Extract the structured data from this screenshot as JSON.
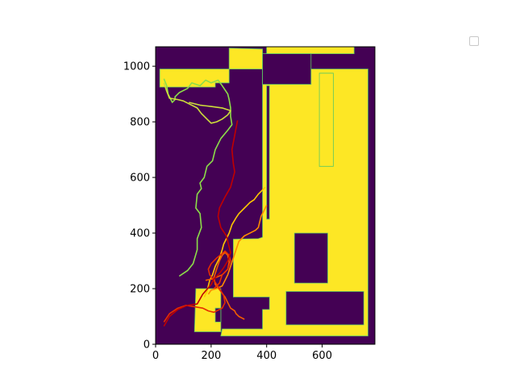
{
  "chart_data": {
    "type": "line",
    "title": "",
    "xlabel": "",
    "ylabel": "",
    "xlim": [
      0,
      790
    ],
    "ylim": [
      0,
      1070
    ],
    "xticks": [
      0,
      200,
      400,
      600
    ],
    "yticks": [
      0,
      200,
      400,
      600,
      800,
      1000
    ],
    "grid": false,
    "legend": {
      "placement": "upper right",
      "entries": []
    },
    "colors": {
      "background_map": "#440154",
      "free_space": "#fde725",
      "edge": "#5ec962"
    },
    "map_regions": {
      "free_space": [
        [
          [
            15,
            925
          ],
          [
            215,
            925
          ],
          [
            215,
            940
          ],
          [
            265,
            940
          ],
          [
            265,
            1065
          ],
          [
            385,
            1062
          ],
          [
            385,
            385
          ],
          [
            370,
            380
          ],
          [
            280,
            378
          ],
          [
            280,
            170
          ],
          [
            410,
            170
          ],
          [
            410,
            125
          ],
          [
            385,
            125
          ],
          [
            385,
            55
          ],
          [
            240,
            55
          ],
          [
            235,
            30
          ],
          [
            765,
            30
          ],
          [
            765,
            990
          ],
          [
            15,
            990
          ]
        ],
        [
          [
            400,
            1045
          ],
          [
            715,
            1045
          ],
          [
            715,
            1070
          ],
          [
            400,
            1070
          ]
        ],
        [
          [
            145,
            200
          ],
          [
            235,
            200
          ],
          [
            235,
            45
          ],
          [
            140,
            45
          ]
        ],
        [
          [
            590,
            640
          ],
          [
            640,
            640
          ],
          [
            640,
            975
          ],
          [
            590,
            975
          ]
        ]
      ],
      "obstacles": [
        [
          [
            385,
            935
          ],
          [
            560,
            935
          ],
          [
            560,
            1045
          ],
          [
            385,
            1045
          ]
        ],
        [
          [
            400,
            450
          ],
          [
            410,
            450
          ],
          [
            410,
            930
          ],
          [
            400,
            930
          ]
        ],
        [
          [
            500,
            220
          ],
          [
            620,
            220
          ],
          [
            620,
            400
          ],
          [
            500,
            400
          ]
        ],
        [
          [
            470,
            70
          ],
          [
            750,
            70
          ],
          [
            750,
            190
          ],
          [
            470,
            190
          ]
        ],
        [
          [
            215,
            80
          ],
          [
            235,
            80
          ],
          [
            235,
            130
          ],
          [
            215,
            130
          ]
        ]
      ]
    },
    "series": [
      {
        "color": "#8cde49",
        "x": [
          85,
          100,
          115,
          135,
          150,
          150,
          165,
          160,
          145,
          150,
          165,
          160,
          175,
          185,
          205,
          215,
          235,
          260,
          275,
          270,
          270,
          265,
          260,
          240,
          225,
          200,
          180,
          160,
          130,
          115,
          85,
          70,
          70,
          60,
          45,
          40,
          30
        ],
        "y": [
          245,
          255,
          265,
          290,
          340,
          380,
          420,
          470,
          490,
          540,
          560,
          580,
          600,
          640,
          660,
          700,
          740,
          770,
          790,
          820,
          850,
          880,
          900,
          930,
          950,
          940,
          950,
          930,
          940,
          920,
          905,
          890,
          880,
          870,
          900,
          930,
          955
        ]
      },
      {
        "color": "#cdde3a",
        "x": [
          120,
          160,
          200,
          240,
          270,
          260,
          240,
          220,
          200,
          185,
          165,
          150,
          120,
          100,
          80,
          50,
          40,
          30
        ],
        "y": [
          870,
          860,
          855,
          850,
          840,
          825,
          810,
          800,
          795,
          810,
          830,
          850,
          865,
          875,
          880,
          885,
          910,
          940
        ]
      },
      {
        "color": "#ffc800",
        "x": [
          395,
          390,
          370,
          355,
          340,
          320,
          300,
          290,
          275,
          265,
          255,
          245,
          240,
          230,
          215,
          205,
          195,
          190,
          185,
          175
        ],
        "y": [
          565,
          560,
          540,
          520,
          510,
          490,
          470,
          455,
          430,
          400,
          380,
          360,
          340,
          310,
          280,
          250,
          230,
          210,
          190,
          170
        ]
      },
      {
        "color": "#ff8c00",
        "x": [
          400,
          390,
          380,
          375,
          370,
          360,
          340,
          320,
          300,
          290,
          280,
          270,
          260,
          250,
          240,
          220,
          200,
          190
        ],
        "y": [
          500,
          480,
          460,
          440,
          420,
          410,
          400,
          390,
          370,
          340,
          310,
          280,
          250,
          230,
          210,
          200,
          195,
          180
        ]
      },
      {
        "color": "#f25c00",
        "x": [
          180,
          205,
          240,
          260,
          265,
          260,
          250,
          240,
          230,
          220,
          210,
          215,
          235,
          250,
          260,
          270,
          285,
          290,
          300,
          320
        ],
        "y": [
          230,
          235,
          250,
          270,
          295,
          320,
          330,
          320,
          300,
          270,
          240,
          215,
          190,
          170,
          150,
          130,
          120,
          110,
          100,
          90
        ]
      },
      {
        "color": "#e62e00",
        "x": [
          30,
          50,
          80,
          110,
          140,
          170,
          190,
          210,
          240,
          250,
          245,
          230,
          210,
          195,
          190,
          200,
          220,
          250,
          265,
          270,
          260,
          240,
          230,
          210
        ],
        "y": [
          80,
          110,
          130,
          140,
          135,
          130,
          120,
          115,
          130,
          150,
          175,
          200,
          230,
          250,
          270,
          290,
          310,
          335,
          320,
          300,
          270,
          250,
          220,
          200
        ]
      },
      {
        "color": "#c00000",
        "x": [
          30,
          50,
          80,
          115,
          150,
          170,
          200,
          210,
          230,
          245,
          260,
          270,
          265,
          255,
          235,
          225,
          230,
          240,
          250,
          270,
          285,
          280,
          275,
          295
        ],
        "y": [
          65,
          100,
          125,
          140,
          145,
          180,
          215,
          235,
          255,
          275,
          300,
          330,
          350,
          390,
          420,
          460,
          490,
          510,
          530,
          565,
          620,
          650,
          700,
          805
        ]
      }
    ]
  }
}
